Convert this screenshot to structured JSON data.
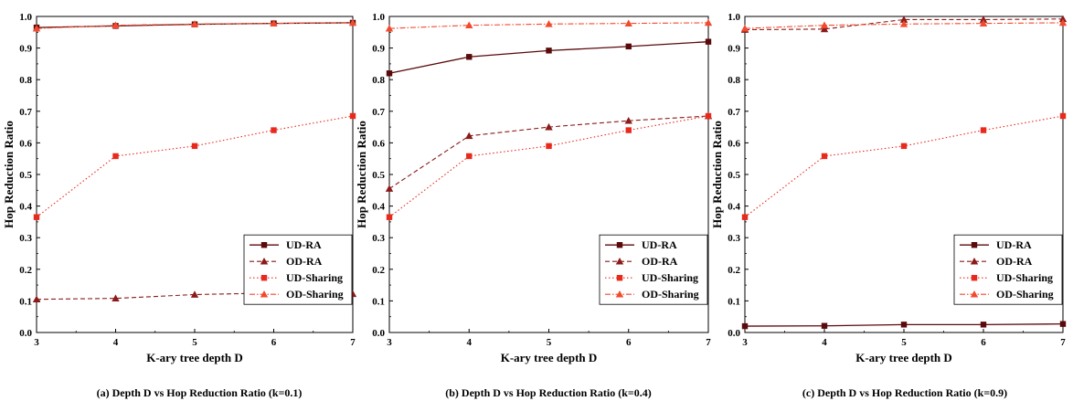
{
  "figure": {
    "colors": {
      "UD-RA": "#5a0a0a",
      "OD-RA": "#8b1a1a",
      "UD-Sharing": "#e8291c",
      "OD-Sharing": "#f24a2e"
    }
  },
  "chart_data": [
    {
      "type": "line",
      "caption": "(a) Depth D vs Hop Reduction Ratio (k=0.1)",
      "xlabel": "K-ary tree depth D",
      "ylabel": "Hop Reduction Ratio",
      "x": [
        3,
        4,
        5,
        6,
        7
      ],
      "xlim": [
        3,
        7
      ],
      "ylim": [
        0,
        1
      ],
      "xticks": [
        "3",
        "4",
        "5",
        "6",
        "7"
      ],
      "yticks": [
        "0.0",
        "0.1",
        "0.2",
        "0.3",
        "0.4",
        "0.5",
        "0.6",
        "0.7",
        "0.8",
        "0.9",
        "1.0"
      ],
      "legend": "bottom-right",
      "series": [
        {
          "name": "UD-RA",
          "values": [
            0.965,
            0.97,
            0.975,
            0.978,
            0.98
          ]
        },
        {
          "name": "OD-RA",
          "values": [
            0.105,
            0.108,
            0.12,
            0.125,
            0.122
          ]
        },
        {
          "name": "UD-Sharing",
          "values": [
            0.365,
            0.558,
            0.59,
            0.64,
            0.685
          ]
        },
        {
          "name": "OD-Sharing",
          "values": [
            0.962,
            0.972,
            0.976,
            0.978,
            0.98
          ]
        }
      ]
    },
    {
      "type": "line",
      "caption": "(b) Depth D vs Hop Reduction Ratio (k=0.4)",
      "xlabel": "K-ary tree depth D",
      "ylabel": "Hop Reduction Ratio",
      "x": [
        3,
        4,
        5,
        6,
        7
      ],
      "xlim": [
        3,
        7
      ],
      "ylim": [
        0,
        1
      ],
      "xticks": [
        "3",
        "4",
        "5",
        "6",
        "7"
      ],
      "yticks": [
        "0.0",
        "0.1",
        "0.2",
        "0.3",
        "0.4",
        "0.5",
        "0.6",
        "0.7",
        "0.8",
        "0.9",
        "1.0"
      ],
      "legend": "bottom-right",
      "series": [
        {
          "name": "UD-RA",
          "values": [
            0.82,
            0.872,
            0.892,
            0.905,
            0.92
          ]
        },
        {
          "name": "OD-RA",
          "values": [
            0.455,
            0.622,
            0.65,
            0.67,
            0.685
          ]
        },
        {
          "name": "UD-Sharing",
          "values": [
            0.365,
            0.558,
            0.59,
            0.64,
            0.685
          ]
        },
        {
          "name": "OD-Sharing",
          "values": [
            0.962,
            0.972,
            0.976,
            0.978,
            0.98
          ]
        }
      ]
    },
    {
      "type": "line",
      "caption": "(c) Depth D vs Hop Reduction Ratio (k=0.9)",
      "xlabel": "K-ary tree depth D",
      "ylabel": "Hop Reduction Ratio",
      "x": [
        3,
        4,
        5,
        6,
        7
      ],
      "xlim": [
        3,
        7
      ],
      "ylim": [
        0,
        1
      ],
      "xticks": [
        "3",
        "4",
        "5",
        "6",
        "7"
      ],
      "yticks": [
        "0.0",
        "0.1",
        "0.2",
        "0.3",
        "0.4",
        "0.5",
        "0.6",
        "0.7",
        "0.8",
        "0.9",
        "1.0"
      ],
      "legend": "bottom-right",
      "series": [
        {
          "name": "UD-RA",
          "values": [
            0.02,
            0.021,
            0.025,
            0.025,
            0.027
          ]
        },
        {
          "name": "OD-RA",
          "values": [
            0.958,
            0.96,
            0.99,
            0.99,
            0.992
          ]
        },
        {
          "name": "UD-Sharing",
          "values": [
            0.365,
            0.558,
            0.59,
            0.64,
            0.685
          ]
        },
        {
          "name": "OD-Sharing",
          "values": [
            0.962,
            0.972,
            0.976,
            0.978,
            0.98
          ]
        }
      ]
    }
  ]
}
